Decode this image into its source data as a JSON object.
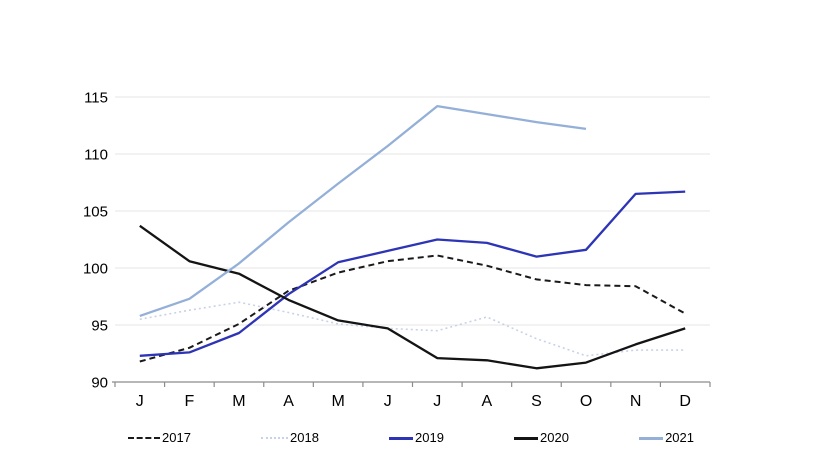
{
  "chart_data": {
    "type": "line",
    "title": "",
    "xlabel": "",
    "ylabel": "",
    "x_categories": [
      "J",
      "F",
      "M",
      "A",
      "M",
      "J",
      "J",
      "A",
      "S",
      "O",
      "N",
      "D"
    ],
    "y_ticks": [
      90,
      95,
      100,
      105,
      110,
      115
    ],
    "ylim": [
      90,
      115
    ],
    "grid": "horizontal",
    "legend_position": "bottom",
    "colors": {
      "grid_line": "#e4e4e4",
      "axis_line": "#8c8c8c",
      "accent_blue": "#2d34b5",
      "light_blue": "#94b0d8",
      "light_dotted": "#c7d2e8",
      "black": "#141414"
    },
    "series": [
      {
        "name": "2017",
        "style": "dashed",
        "color": "#1a1a1a",
        "values": [
          91.8,
          93.0,
          95.1,
          98.0,
          99.6,
          100.6,
          101.1,
          100.2,
          99.0,
          98.5,
          98.4,
          96.0
        ]
      },
      {
        "name": "2018",
        "style": "dotted",
        "color": "#c7d2e8",
        "values": [
          95.5,
          96.3,
          97.0,
          96.1,
          95.1,
          94.7,
          94.5,
          95.7,
          93.8,
          92.3,
          92.8,
          92.8
        ]
      },
      {
        "name": "2019",
        "style": "solid",
        "color": "#2d34b5",
        "values": [
          92.3,
          92.6,
          94.3,
          97.7,
          100.5,
          101.5,
          102.5,
          102.2,
          101.0,
          101.6,
          106.5,
          106.7
        ]
      },
      {
        "name": "2020",
        "style": "solid",
        "color": "#141414",
        "values": [
          103.7,
          100.6,
          99.5,
          97.2,
          95.4,
          94.7,
          92.1,
          91.9,
          91.2,
          91.7,
          93.3,
          94.7
        ]
      },
      {
        "name": "2021",
        "style": "solid",
        "color": "#94b0d8",
        "values": [
          95.8,
          97.3,
          100.4,
          104.0,
          107.4,
          110.7,
          114.2,
          113.5,
          112.8,
          112.2,
          null,
          null
        ]
      }
    ]
  }
}
